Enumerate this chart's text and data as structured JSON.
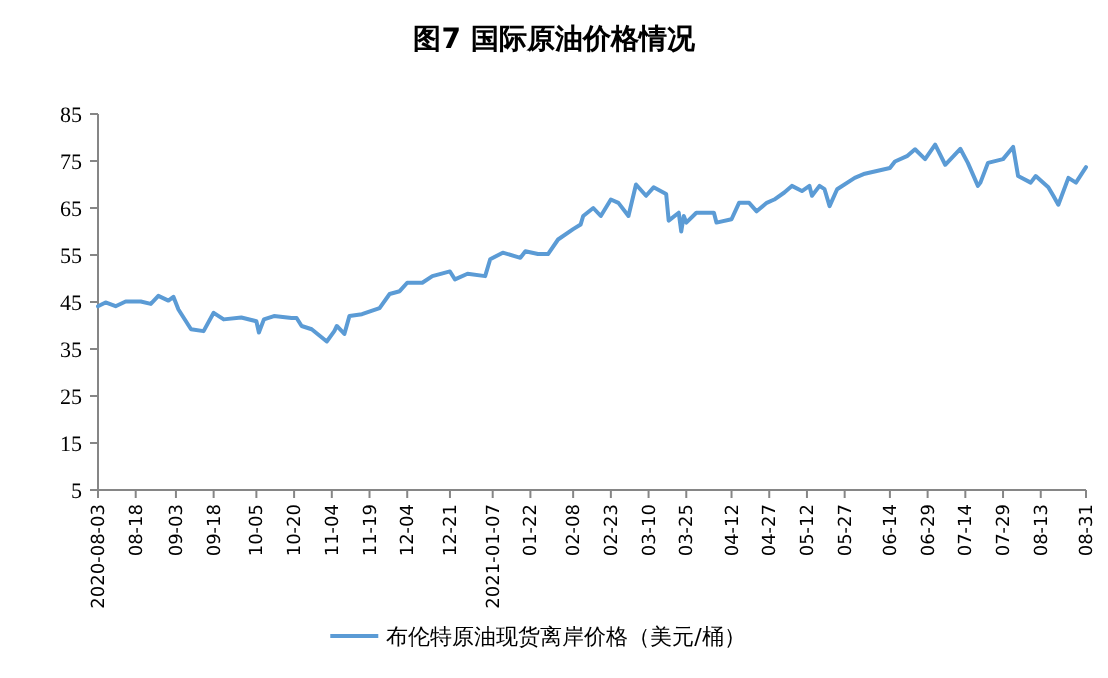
{
  "chart_data": {
    "type": "line",
    "title": "图7 国际原油价格情况",
    "x": [
      "2020-08-03",
      "2020-08-06",
      "2020-08-10",
      "2020-08-14",
      "2020-08-20",
      "2020-08-24",
      "2020-08-27",
      "2020-08-31",
      "2020-09-02",
      "2020-09-04",
      "2020-09-09",
      "2020-09-14",
      "2020-09-18",
      "2020-09-22",
      "2020-09-29",
      "2020-10-05",
      "2020-10-06",
      "2020-10-08",
      "2020-10-12",
      "2020-10-19",
      "2020-10-21",
      "2020-10-23",
      "2020-10-27",
      "2020-11-02",
      "2020-11-05",
      "2020-11-06",
      "2020-11-09",
      "2020-11-11",
      "2020-11-16",
      "2020-11-23",
      "2020-11-27",
      "2020-12-01",
      "2020-12-04",
      "2020-12-10",
      "2020-12-14",
      "2020-12-21",
      "2020-12-23",
      "2020-12-28",
      "2021-01-04",
      "2021-01-06",
      "2021-01-11",
      "2021-01-18",
      "2021-01-20",
      "2021-01-25",
      "2021-01-29",
      "2021-02-02",
      "2021-02-08",
      "2021-02-11",
      "2021-02-12",
      "2021-02-16",
      "2021-02-19",
      "2021-02-23",
      "2021-02-26",
      "2021-03-02",
      "2021-03-05",
      "2021-03-09",
      "2021-03-12",
      "2021-03-17",
      "2021-03-18",
      "2021-03-22",
      "2021-03-23",
      "2021-03-24",
      "2021-03-25",
      "2021-03-29",
      "2021-04-05",
      "2021-04-06",
      "2021-04-12",
      "2021-04-15",
      "2021-04-19",
      "2021-04-22",
      "2021-04-26",
      "2021-04-29",
      "2021-05-03",
      "2021-05-06",
      "2021-05-10",
      "2021-05-13",
      "2021-05-14",
      "2021-05-17",
      "2021-05-19",
      "2021-05-21",
      "2021-05-24",
      "2021-05-31",
      "2021-06-04",
      "2021-06-14",
      "2021-06-16",
      "2021-06-21",
      "2021-06-24",
      "2021-06-28",
      "2021-07-02",
      "2021-07-06",
      "2021-07-12",
      "2021-07-15",
      "2021-07-19",
      "2021-07-20",
      "2021-07-23",
      "2021-07-29",
      "2021-08-02",
      "2021-08-04",
      "2021-08-09",
      "2021-08-11",
      "2021-08-16",
      "2021-08-18",
      "2021-08-20",
      "2021-08-24",
      "2021-08-27",
      "2021-08-31"
    ],
    "series": [
      {
        "name": "布伦特原油现货离岸价格（美元/桶）",
        "color": "#5b9bd5",
        "values": [
          44.1,
          44.9,
          44.1,
          45.1,
          45.1,
          44.6,
          46.3,
          45.3,
          46.1,
          43.4,
          39.2,
          38.8,
          42.7,
          41.3,
          41.7,
          40.9,
          38.5,
          41.3,
          42.0,
          41.6,
          41.6,
          39.9,
          39.2,
          36.6,
          38.8,
          39.9,
          38.2,
          42.0,
          42.4,
          43.7,
          46.7,
          47.3,
          49.1,
          49.1,
          50.5,
          51.5,
          49.8,
          51.0,
          50.5,
          54.1,
          55.5,
          54.4,
          55.8,
          55.2,
          55.2,
          58.3,
          60.5,
          61.5,
          63.3,
          65.0,
          63.3,
          66.8,
          66.1,
          63.3,
          70.0,
          67.6,
          69.4,
          68.0,
          62.3,
          64.0,
          60.0,
          63.3,
          61.9,
          64.0,
          64.0,
          61.9,
          62.6,
          66.1,
          66.1,
          64.3,
          66.1,
          66.8,
          68.3,
          69.7,
          68.6,
          69.7,
          67.6,
          69.7,
          69.0,
          65.4,
          69.0,
          71.4,
          72.3,
          73.5,
          74.9,
          76.1,
          77.5,
          75.4,
          78.5,
          74.2,
          77.6,
          74.6,
          69.7,
          70.4,
          74.6,
          75.4,
          78.0,
          71.8,
          70.4,
          71.8,
          69.4,
          67.6,
          65.7,
          71.4,
          70.4,
          73.7
        ]
      }
    ],
    "xlim": [
      "2020-08-03",
      "2021-08-31"
    ],
    "xticks": [
      {
        "value": "2020-08-03",
        "label": "2020-08-03"
      },
      {
        "value": "2020-08-18",
        "label": "08-18"
      },
      {
        "value": "2020-09-03",
        "label": "09-03"
      },
      {
        "value": "2020-09-18",
        "label": "09-18"
      },
      {
        "value": "2020-10-05",
        "label": "10-05"
      },
      {
        "value": "2020-10-20",
        "label": "10-20"
      },
      {
        "value": "2020-11-04",
        "label": "11-04"
      },
      {
        "value": "2020-11-19",
        "label": "11-19"
      },
      {
        "value": "2020-12-04",
        "label": "12-04"
      },
      {
        "value": "2020-12-21",
        "label": "12-21"
      },
      {
        "value": "2021-01-07",
        "label": "2021-01-07"
      },
      {
        "value": "2021-01-22",
        "label": "01-22"
      },
      {
        "value": "2021-02-08",
        "label": "02-08"
      },
      {
        "value": "2021-02-23",
        "label": "02-23"
      },
      {
        "value": "2021-03-10",
        "label": "03-10"
      },
      {
        "value": "2021-03-25",
        "label": "03-25"
      },
      {
        "value": "2021-04-12",
        "label": "04-12"
      },
      {
        "value": "2021-04-27",
        "label": "04-27"
      },
      {
        "value": "2021-05-12",
        "label": "05-12"
      },
      {
        "value": "2021-05-27",
        "label": "05-27"
      },
      {
        "value": "2021-06-14",
        "label": "06-14"
      },
      {
        "value": "2021-06-29",
        "label": "06-29"
      },
      {
        "value": "2021-07-14",
        "label": "07-14"
      },
      {
        "value": "2021-07-29",
        "label": "07-29"
      },
      {
        "value": "2021-08-13",
        "label": "08-13"
      },
      {
        "value": "2021-08-31",
        "label": "08-31"
      }
    ],
    "ylim": [
      5,
      85
    ],
    "yticks": [
      5,
      15,
      25,
      35,
      45,
      55,
      65,
      75,
      85
    ],
    "legend": "bottom"
  }
}
